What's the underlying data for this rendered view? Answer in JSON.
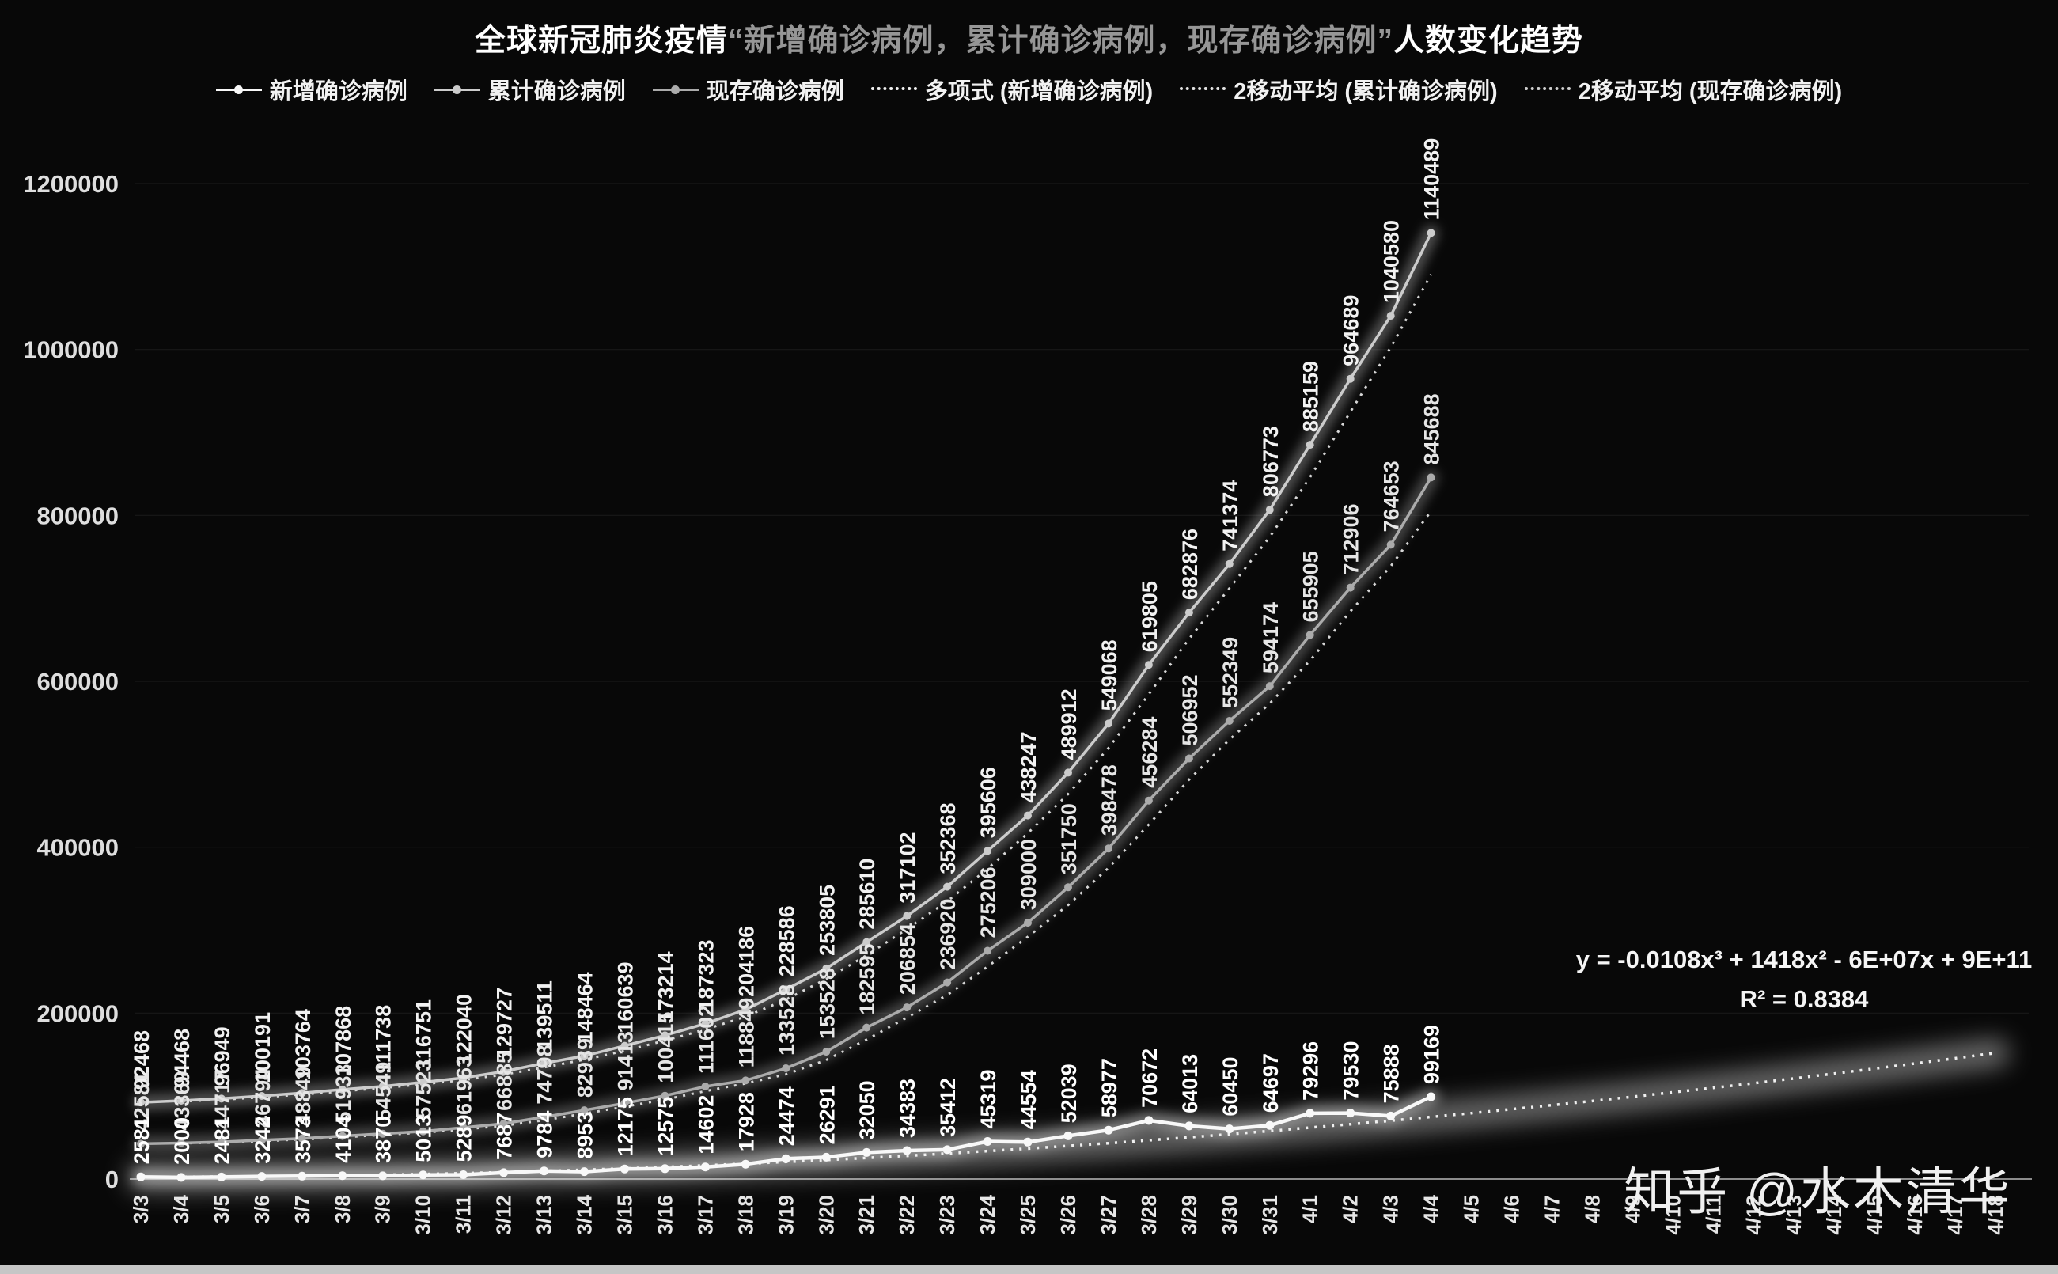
{
  "title": {
    "prefix": "全球新冠肺炎疫情",
    "quoted": "“新增确诊病例，累计确诊病例，现存确诊病例”",
    "suffix": "人数变化趋势"
  },
  "legend": [
    {
      "label": "新增确诊病例",
      "marker": "line-dot",
      "color": "#f8f8f8"
    },
    {
      "label": "累计确诊病例",
      "marker": "line-dot",
      "color": "#cccccc"
    },
    {
      "label": "现存确诊病例",
      "marker": "line-dot",
      "color": "#ababab"
    },
    {
      "label": "多项式 (新增确诊病例)",
      "marker": "dotted",
      "color": "#f0f0f0"
    },
    {
      "label": "2移动平均 (累计确诊病例)",
      "marker": "dotted",
      "color": "#e2e2e2"
    },
    {
      "label": "2移动平均 (现存确诊病例)",
      "marker": "dotted",
      "color": "#cfcfcf"
    }
  ],
  "annotation": {
    "equation": "y = -0.0108x³ + 1418x² - 6E+07x + 9E+11",
    "r2": "R² = 0.8384"
  },
  "watermark": "知乎 @水木清华",
  "chart_data": {
    "type": "line",
    "title": "全球新冠肺炎疫情“新增确诊病例，累计确诊病例，现存确诊病例”人数变化趋势",
    "xlabel": "",
    "ylabel": "",
    "ylim": [
      0,
      1200000
    ],
    "yticks": [
      0,
      200000,
      400000,
      600000,
      800000,
      1000000,
      1200000
    ],
    "grid": false,
    "legend_position": "top",
    "data_labels": true,
    "background": "#080808",
    "x": [
      "3/3",
      "3/4",
      "3/5",
      "3/6",
      "3/7",
      "3/8",
      "3/9",
      "3/10",
      "3/11",
      "3/12",
      "3/13",
      "3/14",
      "3/15",
      "3/16",
      "3/17",
      "3/18",
      "3/19",
      "3/20",
      "3/21",
      "3/22",
      "3/23",
      "3/24",
      "3/25",
      "3/26",
      "3/27",
      "3/28",
      "3/29",
      "3/30",
      "3/31",
      "4/1",
      "4/2",
      "4/3",
      "4/4",
      "4/5",
      "4/6",
      "4/7",
      "4/8",
      "4/9",
      "4/10",
      "4/11",
      "4/12",
      "4/13",
      "4/14",
      "4/15",
      "4/16",
      "4/17",
      "4/18"
    ],
    "series": [
      {
        "name": "新增确诊病例",
        "values": [
          2581,
          2000,
          2481,
          3242,
          3573,
          4104,
          3870,
          5013,
          5289,
          7687,
          9784,
          8953,
          12175,
          12575,
          14602,
          17928,
          24474,
          26291,
          32050,
          34383,
          35412,
          45319,
          44554,
          52039,
          58977,
          70672,
          64013,
          60450,
          64697,
          79296,
          79530,
          75888,
          99169
        ]
      },
      {
        "name": "累计确诊病例",
        "values": [
          92468,
          94468,
          96949,
          100191,
          103764,
          107868,
          111738,
          116751,
          122040,
          129727,
          139511,
          148464,
          160639,
          173214,
          187323,
          204186,
          228586,
          253805,
          285610,
          317102,
          352368,
          395606,
          438247,
          489912,
          549068,
          619805,
          682876,
          741374,
          806773,
          885159,
          964689,
          1040580,
          1140489
        ]
      },
      {
        "name": "现存确诊病例",
        "values": [
          42581,
          43369,
          44717,
          46794,
          48849,
          51933,
          54549,
          57523,
          61963,
          66885,
          74798,
          82939,
          91413,
          100415,
          111602,
          118849,
          133528,
          153528,
          182595,
          206854,
          236920,
          275206,
          309000,
          351750,
          398478,
          456284,
          506952,
          552349,
          594174,
          655905,
          712906,
          764653,
          845688
        ]
      }
    ],
    "trendlines": [
      {
        "name": "多项式 (新增确诊病例)",
        "series": "新增确诊病例",
        "style": "dotted",
        "equation": "y = -0.0108x³ + 1418x² - 6E+07x + 9E+11",
        "r2": "R² = 0.8384",
        "start_value": 2581,
        "end_value": 152000
      },
      {
        "name": "2移动平均 (累计确诊病例)",
        "series": "累计确诊病例",
        "period": 2,
        "style": "dotted"
      },
      {
        "name": "2移动平均 (现存确诊病例)",
        "series": "现存确诊病例",
        "period": 2,
        "style": "dotted"
      }
    ]
  }
}
